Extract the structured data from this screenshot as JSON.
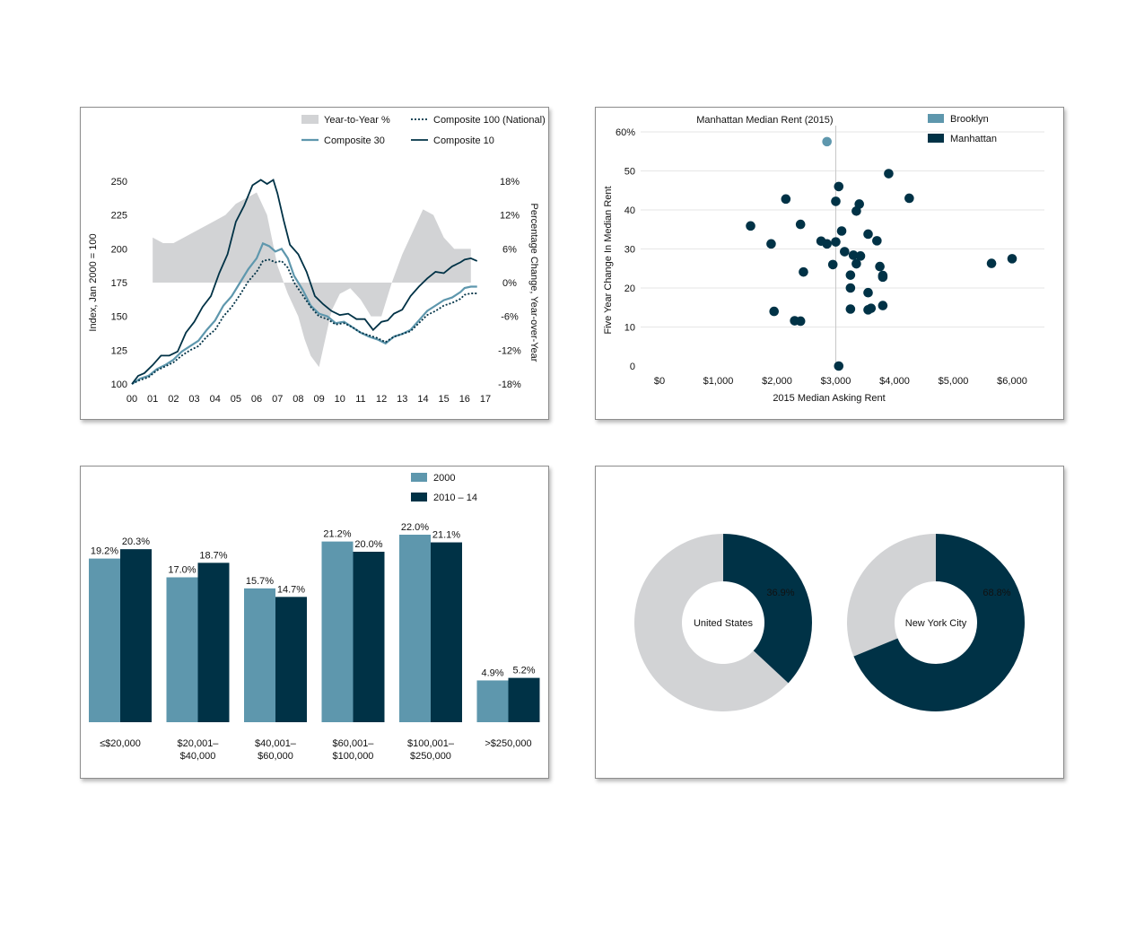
{
  "colors": {
    "light": "#5e97ad",
    "dark": "#003246",
    "gray": "#d2d3d5",
    "grid": "#e6e6e6"
  },
  "chart_data": [
    {
      "id": "home-price-index",
      "type": "line",
      "xlabel": "",
      "ylabel": "Index, Jan 2000 = 100",
      "y2label": "Percentage Change, Year-over-Year",
      "x_ticks": [
        "00",
        "01",
        "02",
        "03",
        "04",
        "05",
        "06",
        "07",
        "08",
        "09",
        "10",
        "11",
        "12",
        "13",
        "14",
        "15",
        "16",
        "17"
      ],
      "y_ticks": [
        "100",
        "125",
        "150",
        "175",
        "200",
        "225",
        "250"
      ],
      "y2_ticks": [
        "-18%",
        "-12%",
        "-6%",
        "0%",
        "6%",
        "12%",
        "18%"
      ],
      "ylim": [
        100,
        250
      ],
      "y2lim": [
        -18,
        18
      ],
      "xlim": [
        0,
        17
      ],
      "legend": [
        "Year-to-Year %",
        "Composite 100 (National)",
        "Composite 30",
        "Composite 10"
      ],
      "series": [
        {
          "name": "Composite 10",
          "style": "dark-solid",
          "x": [
            0,
            0.3,
            0.6,
            1,
            1.4,
            1.8,
            2.2,
            2.6,
            3,
            3.4,
            3.8,
            4.2,
            4.6,
            5,
            5.4,
            5.8,
            6.2,
            6.5,
            6.8,
            7,
            7.3,
            7.6,
            8,
            8.4,
            8.8,
            9.2,
            9.6,
            10,
            10.4,
            10.8,
            11.2,
            11.6,
            12,
            12.3,
            12.6,
            13,
            13.4,
            13.8,
            14.2,
            14.6,
            15,
            15.4,
            15.8,
            16,
            16.3,
            16.6
          ],
          "y": [
            100,
            106,
            108,
            114,
            121,
            121,
            124,
            138,
            146,
            157,
            165,
            182,
            196,
            220,
            232,
            247,
            251,
            248,
            251,
            241,
            221,
            203,
            196,
            183,
            165,
            159,
            154,
            151,
            152,
            148,
            148,
            140,
            146,
            147,
            152,
            155,
            165,
            172,
            178,
            183,
            182,
            187,
            190,
            192,
            193,
            191
          ]
        },
        {
          "name": "Composite 30",
          "style": "light-solid",
          "x": [
            0,
            0.4,
            0.8,
            1.2,
            1.6,
            2,
            2.4,
            2.8,
            3.2,
            3.6,
            4,
            4.4,
            4.8,
            5.2,
            5.6,
            6,
            6.3,
            6.6,
            6.9,
            7.2,
            7.5,
            7.8,
            8.2,
            8.6,
            9,
            9.4,
            9.8,
            10.2,
            10.6,
            11,
            11.4,
            11.8,
            12.2,
            12.6,
            13,
            13.4,
            13.8,
            14.2,
            14.6,
            15,
            15.4,
            15.8,
            16,
            16.3,
            16.6
          ],
          "y": [
            100,
            104,
            106,
            111,
            114,
            118,
            124,
            128,
            132,
            140,
            147,
            158,
            165,
            175,
            185,
            193,
            204,
            202,
            198,
            200,
            193,
            180,
            170,
            158,
            152,
            150,
            145,
            146,
            142,
            138,
            135,
            133,
            130,
            135,
            137,
            140,
            147,
            154,
            158,
            162,
            164,
            168,
            171,
            172,
            172
          ]
        },
        {
          "name": "Composite 100 (National)",
          "style": "dark-dotted",
          "x": [
            0,
            0.4,
            0.8,
            1.2,
            1.6,
            2,
            2.4,
            2.8,
            3.2,
            3.6,
            4,
            4.4,
            4.8,
            5.2,
            5.6,
            6,
            6.3,
            6.6,
            6.9,
            7.2,
            7.5,
            7.8,
            8.2,
            8.6,
            9,
            9.4,
            9.8,
            10.2,
            10.6,
            11,
            11.4,
            11.8,
            12.2,
            12.6,
            13,
            13.4,
            13.8,
            14.2,
            14.6,
            15,
            15.4,
            15.8,
            16,
            16.3,
            16.6
          ],
          "y": [
            100,
            103,
            105,
            110,
            113,
            116,
            121,
            125,
            128,
            135,
            140,
            150,
            157,
            166,
            176,
            183,
            191,
            192,
            190,
            191,
            186,
            175,
            166,
            157,
            150,
            148,
            144,
            145,
            142,
            138,
            136,
            134,
            131,
            135,
            137,
            139,
            145,
            151,
            154,
            158,
            160,
            163,
            166,
            167,
            167
          ]
        },
        {
          "name": "Year-to-Year %",
          "style": "gray-area",
          "x": [
            1,
            1.5,
            2,
            2.5,
            3,
            3.5,
            4,
            4.5,
            5,
            5.5,
            6,
            6.5,
            7,
            7.5,
            8,
            8.3,
            8.6,
            9,
            9.3,
            9.6,
            10,
            10.5,
            11,
            11.5,
            12,
            12.5,
            13,
            13.5,
            14,
            14.5,
            15,
            15.5,
            16,
            16.3
          ],
          "y": [
            8,
            7,
            7,
            8,
            9,
            10,
            11,
            12,
            14,
            15,
            16,
            12,
            3,
            -2,
            -6,
            -10,
            -13,
            -15,
            -10,
            -5,
            -2,
            -1,
            -3,
            -6,
            -6,
            0,
            5,
            9,
            13,
            12,
            8,
            6,
            6,
            6
          ]
        }
      ]
    },
    {
      "id": "rent-scatter",
      "type": "scatter",
      "xlabel": "2015 Median Asking Rent",
      "ylabel": "Five Year Change In Median Rent",
      "x_ticks": [
        "$0",
        "$1,000",
        "$2,000",
        "$3,000",
        "$4,000",
        "$5,000",
        "$6,000"
      ],
      "y_ticks": [
        "0",
        "10",
        "20",
        "30",
        "40",
        "50",
        "60%"
      ],
      "xlim": [
        0,
        6000
      ],
      "ylim": [
        0,
        60
      ],
      "annotation": "Manhattan Median Rent (2015)",
      "annotation_x": 3000,
      "legend": [
        "Brooklyn",
        "Manhattan"
      ],
      "series": [
        {
          "name": "Brooklyn",
          "color": "light",
          "points": [
            [
              2850,
              57.5
            ]
          ]
        },
        {
          "name": "Manhattan",
          "color": "dark",
          "points": [
            [
              3900,
              49.3
            ],
            [
              4250,
              43
            ],
            [
              3050,
              46
            ],
            [
              2150,
              42.8
            ],
            [
              3000,
              42.2
            ],
            [
              3400,
              41.5
            ],
            [
              3350,
              39.7
            ],
            [
              1550,
              35.9
            ],
            [
              2400,
              36.3
            ],
            [
              3100,
              34.6
            ],
            [
              3550,
              33.8
            ],
            [
              1900,
              31.3
            ],
            [
              2750,
              32
            ],
            [
              3000,
              31.8
            ],
            [
              3700,
              32.1
            ],
            [
              2850,
              31.3
            ],
            [
              3150,
              29.3
            ],
            [
              3300,
              28.4
            ],
            [
              3420,
              28.2
            ],
            [
              3350,
              26.2
            ],
            [
              2950,
              26
            ],
            [
              3750,
              25.5
            ],
            [
              2450,
              24.1
            ],
            [
              3800,
              23.2
            ],
            [
              3250,
              23.3
            ],
            [
              3800,
              22.8
            ],
            [
              3250,
              20
            ],
            [
              3550,
              18.8
            ],
            [
              3800,
              15.5
            ],
            [
              3600,
              14.8
            ],
            [
              3550,
              14.4
            ],
            [
              3250,
              14.6
            ],
            [
              1950,
              14
            ],
            [
              2300,
              11.6
            ],
            [
              2400,
              11.5
            ],
            [
              3050,
              0
            ],
            [
              5650,
              26.3
            ],
            [
              6000,
              27.5
            ]
          ]
        }
      ]
    },
    {
      "id": "income-bars",
      "type": "bar",
      "xlabel": "",
      "ylabel": "",
      "ylim": [
        0,
        22
      ],
      "categories": [
        "≤$20,000",
        "$20,001–\n$40,000",
        "$40,001–\n$60,000",
        "$60,001–\n$100,000",
        "$100,001–\n$250,000",
        ">$250,000"
      ],
      "series": [
        {
          "name": "2000",
          "color": "light",
          "values": [
            19.2,
            17.0,
            15.7,
            21.2,
            22.0,
            4.9
          ],
          "labels": [
            "19.2%",
            "17.0%",
            "15.7%",
            "21.2%",
            "22.0%",
            "4.9%"
          ]
        },
        {
          "name": "2010 – 14",
          "color": "dark",
          "values": [
            20.3,
            18.7,
            14.7,
            20.0,
            21.1,
            5.2
          ],
          "labels": [
            "20.3%",
            "18.7%",
            "14.7%",
            "20.0%",
            "21.1%",
            "5.2%"
          ]
        }
      ]
    },
    {
      "id": "donuts",
      "type": "pie",
      "charts": [
        {
          "name": "United States",
          "value": 36.9,
          "label": "36.9%"
        },
        {
          "name": "New York City",
          "value": 68.8,
          "label": "68.8%"
        }
      ]
    }
  ]
}
